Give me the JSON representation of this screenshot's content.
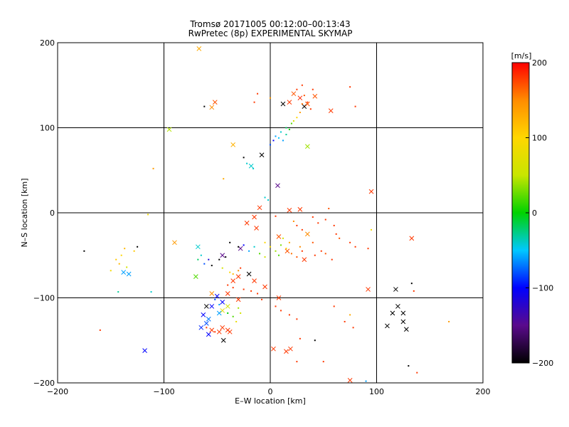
{
  "chart_data": {
    "type": "scatter",
    "title": "Tromsø 20171005 00:12:00–00:13:43",
    "subtitle": "RwPretec (8p) EXPERIMENTAL SKYMAP",
    "xlabel": "E–W location [km]",
    "ylabel": "N–S location [km]",
    "xlim": [
      -200,
      200
    ],
    "ylim": [
      -200,
      200
    ],
    "xticks": [
      -200,
      -100,
      0,
      100,
      200
    ],
    "yticks": [
      -200,
      -100,
      0,
      100,
      200
    ],
    "xtick_labels": [
      "−200",
      "−100",
      "0",
      "100",
      "200"
    ],
    "ytick_labels": [
      "−200",
      "−100",
      "0",
      "100",
      "200"
    ],
    "grid": true,
    "grid_lines": [
      -100,
      0,
      100
    ],
    "colorbar": {
      "unit": "[m/s]",
      "range": [
        -200,
        200
      ],
      "ticks": [
        200,
        100,
        0,
        -100,
        -200
      ],
      "tick_labels": [
        "200",
        "100",
        "0",
        "−100",
        "−200"
      ],
      "colormap": [
        "#000000",
        "#5a0a8c",
        "#0000ff",
        "#00c8ff",
        "#00d200",
        "#c8e600",
        "#ffd700",
        "#ff8c00",
        "#ff0000"
      ]
    },
    "series": [
      {
        "marker": "x",
        "points": [
          [
            -67,
            193,
            130
          ],
          [
            -55,
            124,
            150
          ],
          [
            -52,
            130,
            170
          ],
          [
            -35,
            80,
            125
          ],
          [
            12,
            128,
            -200
          ],
          [
            18,
            130,
            180
          ],
          [
            22,
            140,
            170
          ],
          [
            28,
            135,
            185
          ],
          [
            32,
            125,
            -200
          ],
          [
            35,
            128,
            170
          ],
          [
            42,
            137,
            170
          ],
          [
            57,
            120,
            180
          ],
          [
            35,
            78,
            40
          ],
          [
            -95,
            98,
            45
          ],
          [
            -8,
            68,
            -200
          ],
          [
            7,
            32,
            -150
          ],
          [
            95,
            25,
            180
          ],
          [
            -18,
            55,
            -40
          ],
          [
            -10,
            6,
            180
          ],
          [
            18,
            3,
            180
          ],
          [
            28,
            4,
            180
          ],
          [
            -15,
            -5,
            180
          ],
          [
            -13,
            -18,
            180
          ],
          [
            -22,
            -12,
            180
          ],
          [
            35,
            -25,
            150
          ],
          [
            8,
            -28,
            170
          ],
          [
            16,
            -45,
            170
          ],
          [
            32,
            -55,
            180
          ],
          [
            -90,
            -35,
            140
          ],
          [
            -68,
            -40,
            -40
          ],
          [
            -70,
            -75,
            20
          ],
          [
            -45,
            -50,
            -150
          ],
          [
            -28,
            -42,
            -150
          ],
          [
            -20,
            -72,
            -200
          ],
          [
            -30,
            -75,
            180
          ],
          [
            -15,
            -80,
            180
          ],
          [
            -5,
            -87,
            180
          ],
          [
            8,
            -100,
            180
          ],
          [
            -35,
            -80,
            180
          ],
          [
            -40,
            -95,
            180
          ],
          [
            -55,
            -95,
            150
          ],
          [
            -50,
            -98,
            -100
          ],
          [
            -45,
            -105,
            -100
          ],
          [
            -30,
            -102,
            180
          ],
          [
            -40,
            -110,
            60
          ],
          [
            -45,
            -115,
            80
          ],
          [
            -48,
            -118,
            -60
          ],
          [
            -60,
            -110,
            -200
          ],
          [
            -55,
            -110,
            -100
          ],
          [
            -63,
            -120,
            -100
          ],
          [
            -58,
            -125,
            -70
          ],
          [
            -60,
            -130,
            -80
          ],
          [
            -65,
            -135,
            -90
          ],
          [
            -45,
            -135,
            180
          ],
          [
            -40,
            -138,
            180
          ],
          [
            -55,
            -138,
            180
          ],
          [
            -58,
            -143,
            -100
          ],
          [
            -48,
            -140,
            180
          ],
          [
            -38,
            -140,
            180
          ],
          [
            -44,
            -150,
            -200
          ],
          [
            -138,
            -70,
            -60
          ],
          [
            -133,
            -72,
            -60
          ],
          [
            -118,
            -162,
            -100
          ],
          [
            92,
            -90,
            180
          ],
          [
            118,
            -90,
            -200
          ],
          [
            115,
            -118,
            -200
          ],
          [
            125,
            -118,
            -200
          ],
          [
            120,
            -110,
            -200
          ],
          [
            110,
            -133,
            -200
          ],
          [
            125,
            -128,
            -200
          ],
          [
            128,
            -137,
            -200
          ],
          [
            3,
            -160,
            180
          ],
          [
            15,
            -163,
            180
          ],
          [
            19,
            -160,
            180
          ],
          [
            75,
            -197,
            180
          ],
          [
            133,
            -30,
            180
          ]
        ]
      },
      {
        "marker": "dot",
        "points": [
          [
            -175,
            -45,
            -200
          ],
          [
            -110,
            52,
            140
          ],
          [
            -115,
            -2,
            90
          ],
          [
            -140,
            -50,
            100
          ],
          [
            -145,
            -55,
            110
          ],
          [
            -137,
            -42,
            120
          ],
          [
            -142,
            -60,
            120
          ],
          [
            -150,
            -68,
            90
          ],
          [
            -135,
            -64,
            60
          ],
          [
            -128,
            -45,
            110
          ],
          [
            -125,
            -40,
            -200
          ],
          [
            -112,
            -93,
            -40
          ],
          [
            -143,
            -93,
            -30
          ],
          [
            -62,
            125,
            -200
          ],
          [
            -44,
            40,
            130
          ],
          [
            -25,
            65,
            -200
          ],
          [
            -22,
            58,
            -40
          ],
          [
            -16,
            52,
            -40
          ],
          [
            -5,
            18,
            -40
          ],
          [
            -2,
            15,
            -40
          ],
          [
            5,
            -4,
            180
          ],
          [
            0,
            80,
            -80
          ],
          [
            3,
            85,
            -100
          ],
          [
            5,
            90,
            -60
          ],
          [
            8,
            88,
            -50
          ],
          [
            10,
            95,
            -40
          ],
          [
            12,
            85,
            -60
          ],
          [
            15,
            92,
            -30
          ],
          [
            15,
            100,
            -20
          ],
          [
            18,
            98,
            0
          ],
          [
            20,
            105,
            20
          ],
          [
            22,
            108,
            60
          ],
          [
            25,
            112,
            100
          ],
          [
            28,
            118,
            140
          ],
          [
            30,
            128,
            160
          ],
          [
            32,
            138,
            170
          ],
          [
            35,
            130,
            180
          ],
          [
            38,
            122,
            180
          ],
          [
            40,
            145,
            180
          ],
          [
            30,
            150,
            180
          ],
          [
            25,
            145,
            180
          ],
          [
            -12,
            140,
            180
          ],
          [
            -15,
            130,
            180
          ],
          [
            0,
            135,
            140
          ],
          [
            75,
            148,
            180
          ],
          [
            80,
            125,
            180
          ],
          [
            22,
            -10,
            150
          ],
          [
            25,
            -15,
            180
          ],
          [
            30,
            -20,
            180
          ],
          [
            40,
            -5,
            180
          ],
          [
            45,
            -12,
            180
          ],
          [
            52,
            -8,
            180
          ],
          [
            55,
            5,
            170
          ],
          [
            60,
            -15,
            180
          ],
          [
            62,
            -25,
            180
          ],
          [
            65,
            -30,
            170
          ],
          [
            75,
            -35,
            180
          ],
          [
            80,
            -40,
            180
          ],
          [
            92,
            -42,
            180
          ],
          [
            95,
            -20,
            90
          ],
          [
            -5,
            -35,
            100
          ],
          [
            0,
            -40,
            90
          ],
          [
            5,
            -45,
            40
          ],
          [
            8,
            -50,
            20
          ],
          [
            10,
            -38,
            30
          ],
          [
            12,
            -30,
            60
          ],
          [
            15,
            -42,
            100
          ],
          [
            18,
            -35,
            130
          ],
          [
            20,
            -48,
            160
          ],
          [
            25,
            -52,
            170
          ],
          [
            28,
            -40,
            150
          ],
          [
            30,
            -45,
            180
          ],
          [
            40,
            -35,
            170
          ],
          [
            42,
            -50,
            180
          ],
          [
            48,
            -45,
            180
          ],
          [
            52,
            -48,
            170
          ],
          [
            58,
            -55,
            180
          ],
          [
            -38,
            -35,
            -200
          ],
          [
            -30,
            -40,
            -200
          ],
          [
            -25,
            -38,
            -100
          ],
          [
            -20,
            -45,
            -60
          ],
          [
            -15,
            -40,
            -40
          ],
          [
            -10,
            -48,
            20
          ],
          [
            -5,
            -52,
            60
          ],
          [
            -42,
            -52,
            -200
          ],
          [
            -48,
            -55,
            -200
          ],
          [
            -55,
            -62,
            -200
          ],
          [
            -58,
            -55,
            -120
          ],
          [
            -62,
            -60,
            -80
          ],
          [
            -65,
            -50,
            -40
          ],
          [
            -68,
            -55,
            -20
          ],
          [
            -45,
            -65,
            60
          ],
          [
            -38,
            -70,
            100
          ],
          [
            -35,
            -72,
            120
          ],
          [
            -30,
            -68,
            150
          ],
          [
            -28,
            -65,
            180
          ],
          [
            -40,
            -85,
            180
          ],
          [
            -35,
            -88,
            180
          ],
          [
            -25,
            -90,
            180
          ],
          [
            -18,
            -92,
            180
          ],
          [
            -12,
            -95,
            180
          ],
          [
            -8,
            -102,
            180
          ],
          [
            5,
            -110,
            180
          ],
          [
            10,
            -115,
            180
          ],
          [
            18,
            -120,
            180
          ],
          [
            25,
            -125,
            180
          ],
          [
            -52,
            -102,
            -80
          ],
          [
            -48,
            -108,
            -60
          ],
          [
            -40,
            -118,
            0
          ],
          [
            -35,
            -122,
            20
          ],
          [
            -30,
            -112,
            40
          ],
          [
            -28,
            -118,
            60
          ],
          [
            -32,
            -128,
            80
          ],
          [
            -60,
            -135,
            180
          ],
          [
            -52,
            -140,
            180
          ],
          [
            60,
            -110,
            180
          ],
          [
            70,
            -128,
            180
          ],
          [
            75,
            -120,
            130
          ],
          [
            78,
            -135,
            180
          ],
          [
            28,
            -148,
            180
          ],
          [
            25,
            -175,
            180
          ],
          [
            50,
            -175,
            180
          ],
          [
            90,
            -198,
            -60
          ],
          [
            130,
            -180,
            -200
          ],
          [
            138,
            -188,
            180
          ],
          [
            133,
            -83,
            -200
          ],
          [
            135,
            -92,
            180
          ],
          [
            168,
            -128,
            140
          ],
          [
            42,
            -150,
            -200
          ],
          [
            -160,
            -138,
            180
          ]
        ]
      }
    ]
  }
}
